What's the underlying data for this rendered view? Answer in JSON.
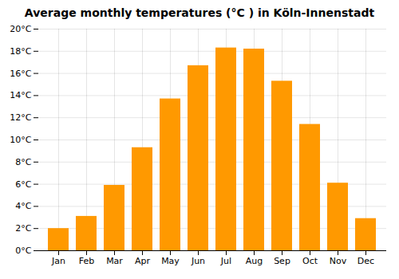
{
  "chart_data": {
    "type": "bar",
    "title": "Average monthly temperatures (°C ) in Köln-Innenstadt",
    "categories": [
      "Jan",
      "Feb",
      "Mar",
      "Apr",
      "May",
      "Jun",
      "Jul",
      "Aug",
      "Sep",
      "Oct",
      "Nov",
      "Dec"
    ],
    "values": [
      2.0,
      3.1,
      5.9,
      9.3,
      13.7,
      16.7,
      18.3,
      18.2,
      15.3,
      11.4,
      6.1,
      2.9
    ],
    "color": "#FF9900",
    "ylim": [
      0,
      20
    ],
    "yticks": [
      {
        "value": 0,
        "label": "0°C"
      },
      {
        "value": 2,
        "label": "2°C"
      },
      {
        "value": 4,
        "label": "4°C"
      },
      {
        "value": 6,
        "label": "6°C"
      },
      {
        "value": 8,
        "label": "8°C"
      },
      {
        "value": 10,
        "label": "10°C"
      },
      {
        "value": 12,
        "label": "12°C"
      },
      {
        "value": 14,
        "label": "14°C"
      },
      {
        "value": 16,
        "label": "16°C"
      },
      {
        "value": 18,
        "label": "18°C"
      },
      {
        "value": 20,
        "label": "20°C"
      }
    ],
    "grid": true
  }
}
